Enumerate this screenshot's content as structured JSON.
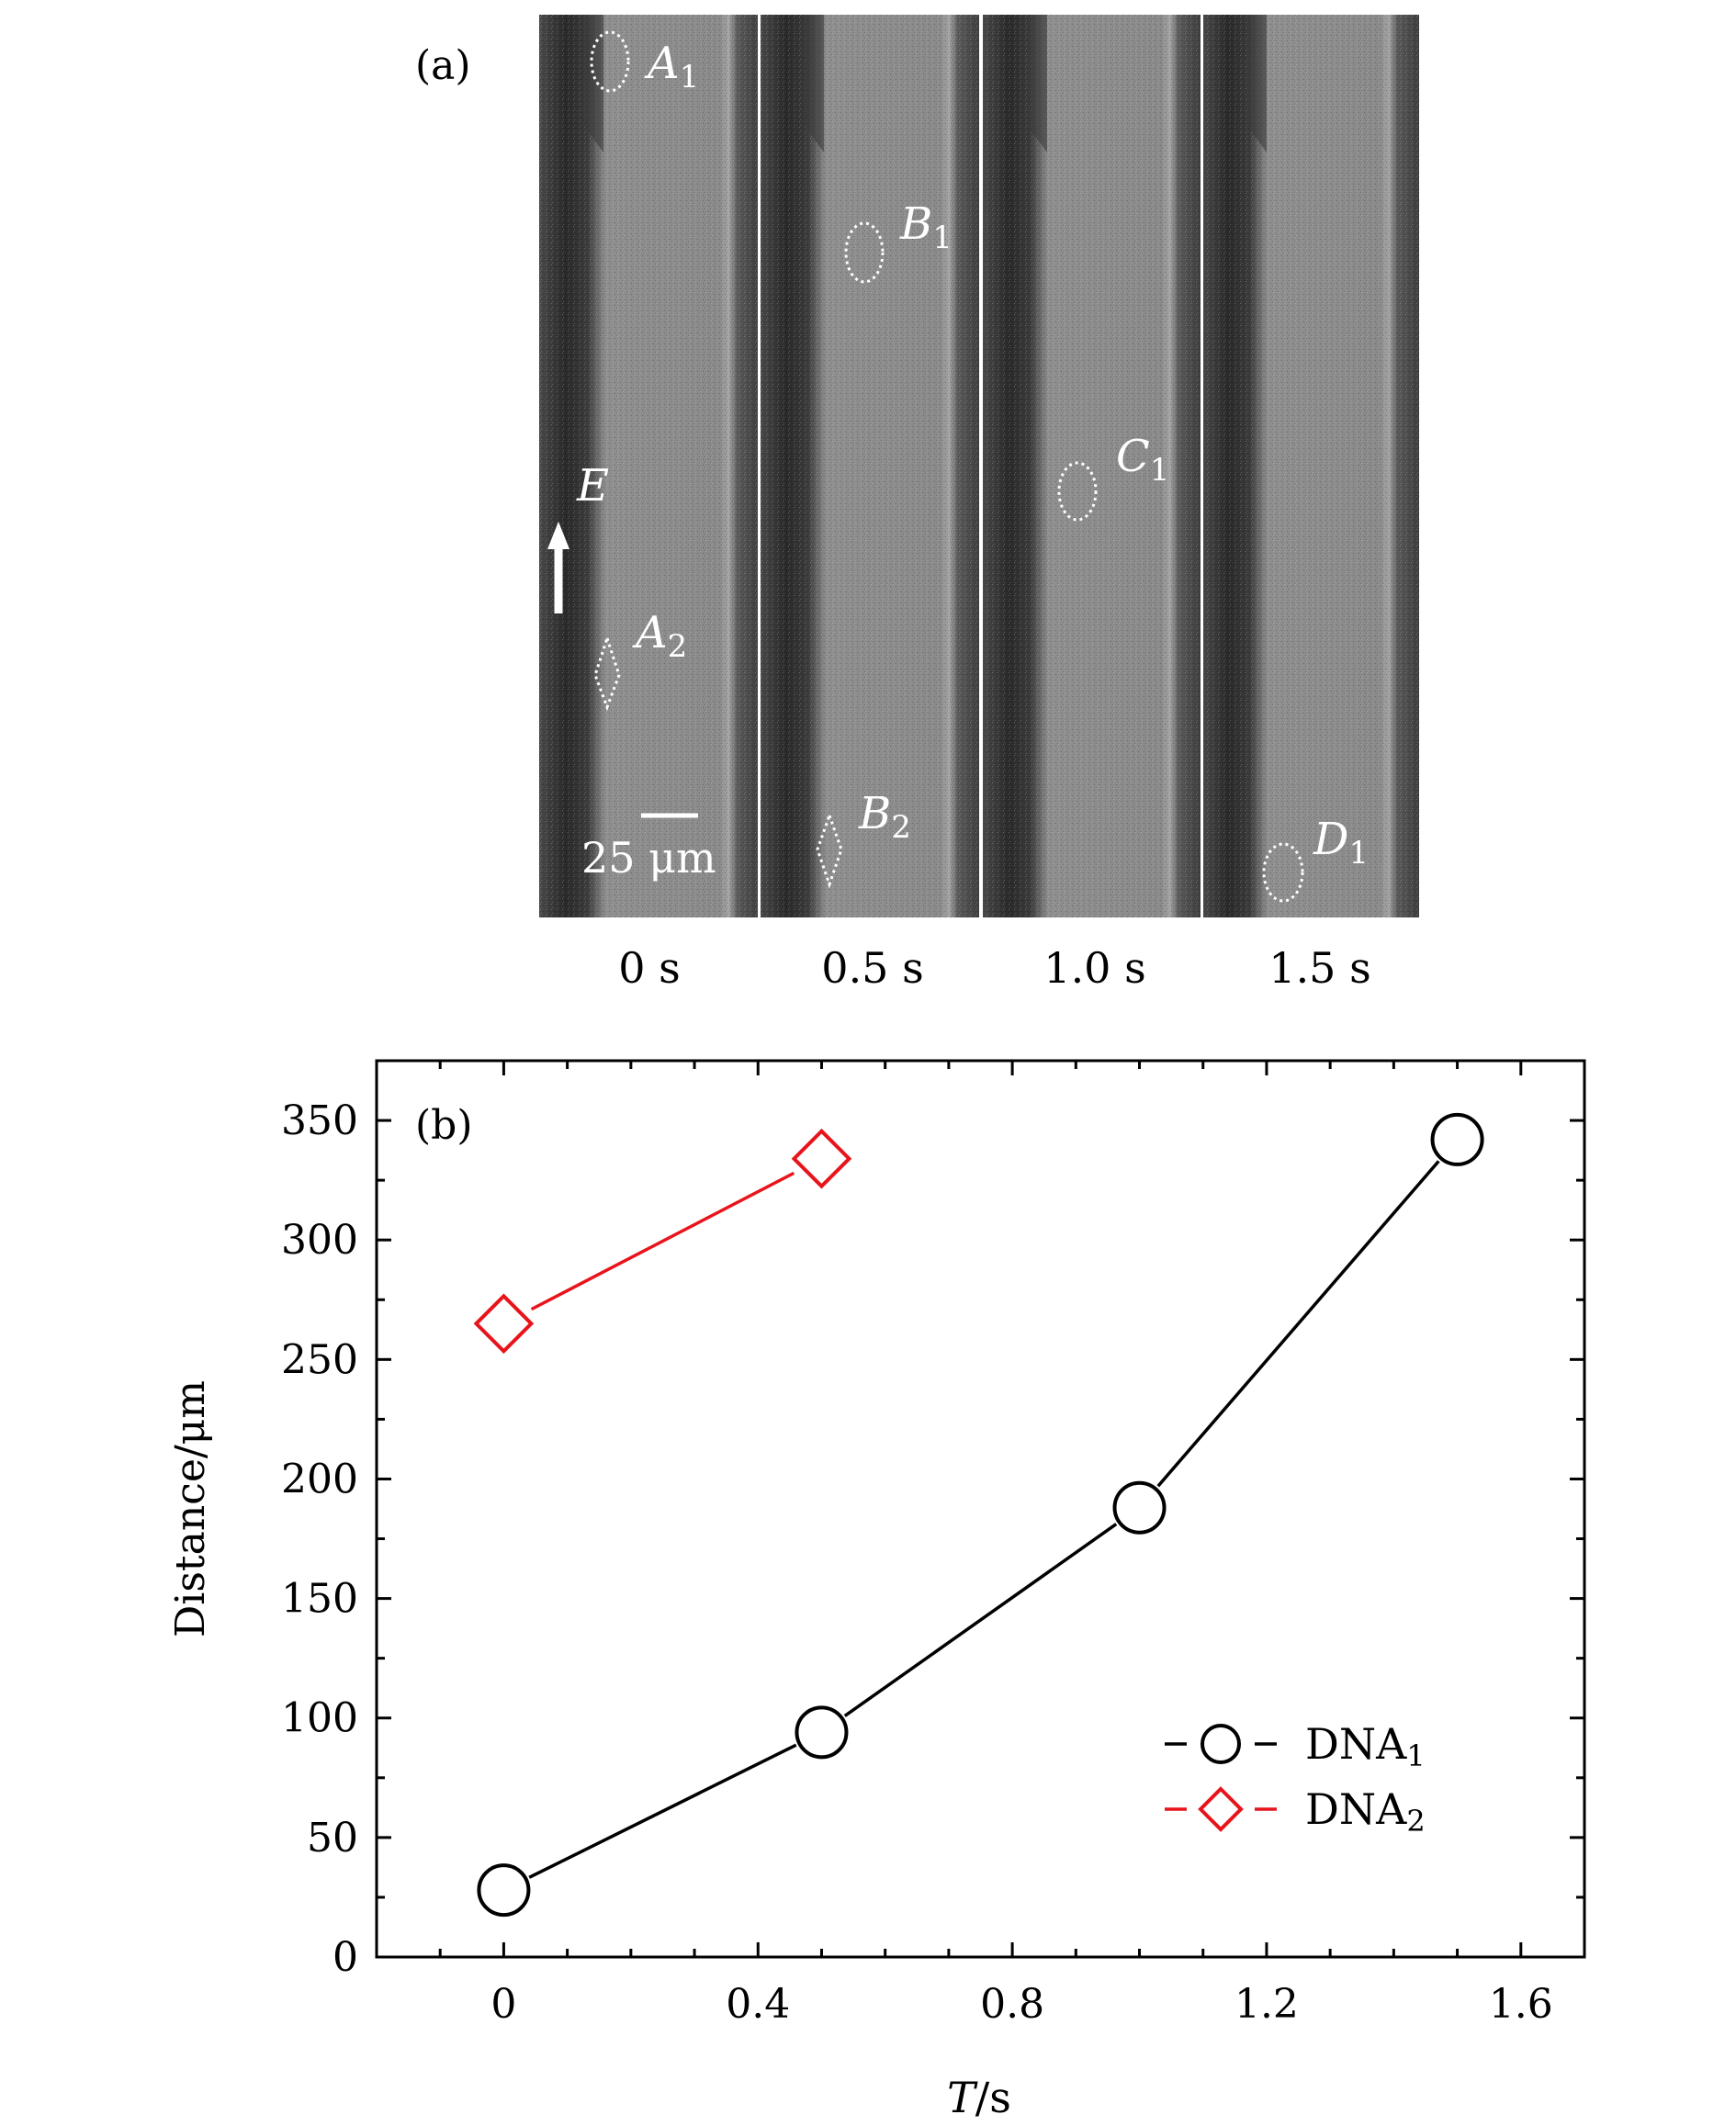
{
  "panel_a": {
    "label": "(a)",
    "frames": [
      {
        "time": "0 s"
      },
      {
        "time": "0.5 s"
      },
      {
        "time": "1.0 s"
      },
      {
        "time": "1.5 s"
      }
    ],
    "annotations": [
      {
        "letter": "A",
        "sub": "1",
        "frame": 0
      },
      {
        "letter": "A",
        "sub": "2",
        "frame": 0
      },
      {
        "letter": "B",
        "sub": "1",
        "frame": 1
      },
      {
        "letter": "B",
        "sub": "2",
        "frame": 1
      },
      {
        "letter": "C",
        "sub": "1",
        "frame": 2
      },
      {
        "letter": "D",
        "sub": "1",
        "frame": 3
      }
    ],
    "field_label": "E",
    "scale_bar_label": "25 μm"
  },
  "chart_data": {
    "type": "line",
    "panel_label": "(b)",
    "xlabel_italic": "T",
    "xlabel_unit": "/s",
    "ylabel": "Distance/μm",
    "xlim": [
      -0.2,
      1.7
    ],
    "ylim": [
      0,
      375
    ],
    "xticks": [
      0,
      0.4,
      0.8,
      1.2,
      1.6
    ],
    "xtick_labels": [
      "0",
      "0.4",
      "0.8",
      "1.2",
      "1.6"
    ],
    "yticks": [
      0,
      50,
      100,
      150,
      200,
      250,
      300,
      350
    ],
    "ytick_labels": [
      "0",
      "50",
      "100",
      "150",
      "200",
      "250",
      "300",
      "350"
    ],
    "grid": false,
    "legend_position": "bottom-right",
    "series": [
      {
        "name": "DNA",
        "sub": "1",
        "marker": "circle",
        "color": "#000000",
        "x": [
          0,
          0.5,
          1.0,
          1.5
        ],
        "y": [
          28,
          94,
          188,
          342
        ]
      },
      {
        "name": "DNA",
        "sub": "2",
        "marker": "diamond",
        "color": "#e8141b",
        "x": [
          0,
          0.5
        ],
        "y": [
          265,
          334
        ]
      }
    ]
  }
}
